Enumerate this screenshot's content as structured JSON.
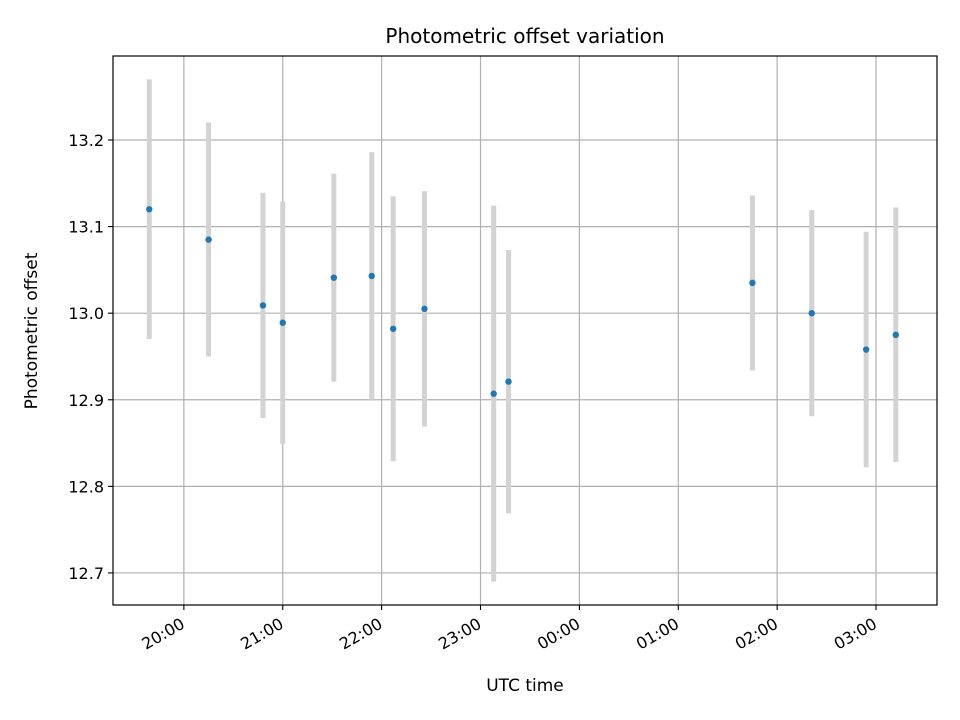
{
  "chart_data": {
    "type": "scatter",
    "title": "Photometric offset variation",
    "xlabel": "UTC time",
    "ylabel": "Photometric offset",
    "x_tick_labels": [
      "20:00",
      "21:00",
      "22:00",
      "23:00",
      "00:00",
      "01:00",
      "02:00",
      "03:00"
    ],
    "y_tick_labels": [
      "12.7",
      "12.8",
      "12.9",
      "13.0",
      "13.1",
      "13.2"
    ],
    "ylim": [
      12.663,
      13.297
    ],
    "xlim": [
      "19:17",
      "03:37"
    ],
    "grid": true,
    "colors": {
      "points": "#1f77b4",
      "errorbars": "#d3d3d3",
      "grid": "#b0b0b0"
    },
    "series": [
      {
        "points": [
          {
            "x": "19:39",
            "y": 13.12,
            "yerr": 0.15
          },
          {
            "x": "20:15",
            "y": 13.085,
            "yerr": 0.135
          },
          {
            "x": "20:48",
            "y": 13.009,
            "yerr": 0.13
          },
          {
            "x": "21:00",
            "y": 12.989,
            "yerr": 0.14
          },
          {
            "x": "21:31",
            "y": 13.041,
            "yerr": 0.12
          },
          {
            "x": "21:54",
            "y": 13.043,
            "yerr": 0.143
          },
          {
            "x": "22:07",
            "y": 12.982,
            "yerr": 0.153
          },
          {
            "x": "22:26",
            "y": 13.005,
            "yerr": 0.136
          },
          {
            "x": "23:08",
            "y": 12.907,
            "yerr": 0.217
          },
          {
            "x": "23:17",
            "y": 12.921,
            "yerr": 0.152
          },
          {
            "x": "01:45",
            "y": 13.035,
            "yerr": 0.101
          },
          {
            "x": "02:21",
            "y": 13.0,
            "yerr": 0.119
          },
          {
            "x": "02:54",
            "y": 12.958,
            "yerr": 0.136
          },
          {
            "x": "03:12",
            "y": 12.975,
            "yerr": 0.147
          }
        ]
      }
    ]
  }
}
